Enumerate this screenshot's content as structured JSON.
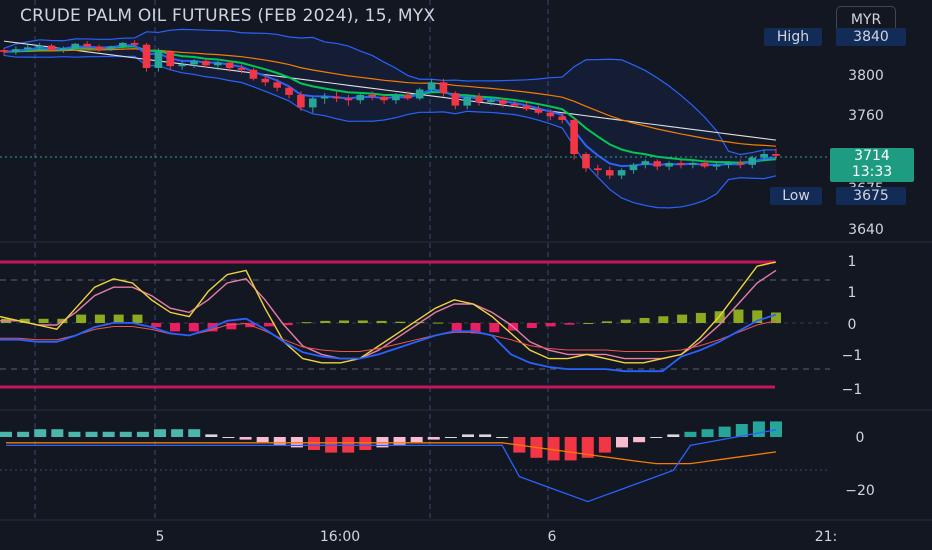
{
  "chart_title": "CRUDE PALM OIL FUTURES (FEB 2024), 15, MYX",
  "currency_button": "MYR",
  "high_label": "High",
  "high_value": "3840",
  "low_label": "Low",
  "low_value": "3675",
  "last_price": "3714",
  "countdown": "13:33",
  "colors": {
    "background": "#131722",
    "up": "#26a69a",
    "down": "#f23645",
    "bollinger": "#2962ff",
    "ema_fast": "#2962ff",
    "ema_mid": "#00c853",
    "ema_slow": "#f57c00",
    "long_ma": "#e0e0e0",
    "stoch_k": "#f0d43a",
    "stoch_d": "#e67ea8",
    "band_lines": "#c2185b"
  },
  "chart_data": [
    {
      "type": "candlestick",
      "pane": "price",
      "ylim": [
        3620,
        3860
      ],
      "y_ticks": [
        "3840",
        "3800",
        "3760",
        "3675",
        "3640"
      ],
      "x_ticks": [
        "5",
        "16:00",
        "6",
        "21:"
      ],
      "bars": [
        [
          3832,
          3834,
          3826,
          3830
        ],
        [
          3830,
          3836,
          3827,
          3833
        ],
        [
          3833,
          3838,
          3830,
          3835
        ],
        [
          3835,
          3840,
          3833,
          3837
        ],
        [
          3837,
          3839,
          3830,
          3832
        ],
        [
          3832,
          3836,
          3829,
          3834
        ],
        [
          3834,
          3840,
          3832,
          3839
        ],
        [
          3839,
          3842,
          3834,
          3836
        ],
        [
          3836,
          3838,
          3830,
          3833
        ],
        [
          3833,
          3837,
          3831,
          3836
        ],
        [
          3836,
          3841,
          3834,
          3840
        ],
        [
          3840,
          3843,
          3836,
          3838
        ],
        [
          3838,
          3840,
          3808,
          3812
        ],
        [
          3812,
          3834,
          3808,
          3830
        ],
        [
          3830,
          3832,
          3810,
          3814
        ],
        [
          3814,
          3820,
          3810,
          3816
        ],
        [
          3816,
          3822,
          3812,
          3820
        ],
        [
          3820,
          3822,
          3812,
          3815
        ],
        [
          3815,
          3820,
          3810,
          3818
        ],
        [
          3818,
          3820,
          3808,
          3812
        ],
        [
          3812,
          3816,
          3806,
          3810
        ],
        [
          3810,
          3812,
          3798,
          3800
        ],
        [
          3800,
          3804,
          3792,
          3796
        ],
        [
          3796,
          3800,
          3786,
          3790
        ],
        [
          3790,
          3792,
          3778,
          3782
        ],
        [
          3782,
          3786,
          3764,
          3768
        ],
        [
          3768,
          3780,
          3762,
          3778
        ],
        [
          3778,
          3784,
          3772,
          3780
        ],
        [
          3780,
          3786,
          3774,
          3778
        ],
        [
          3778,
          3782,
          3770,
          3776
        ],
        [
          3776,
          3784,
          3772,
          3782
        ],
        [
          3782,
          3786,
          3776,
          3780
        ],
        [
          3780,
          3782,
          3772,
          3776
        ],
        [
          3776,
          3784,
          3772,
          3782
        ],
        [
          3782,
          3786,
          3776,
          3778
        ],
        [
          3778,
          3790,
          3776,
          3788
        ],
        [
          3788,
          3800,
          3784,
          3796
        ],
        [
          3796,
          3800,
          3780,
          3784
        ],
        [
          3784,
          3786,
          3766,
          3770
        ],
        [
          3770,
          3782,
          3766,
          3780
        ],
        [
          3780,
          3784,
          3770,
          3774
        ],
        [
          3774,
          3780,
          3770,
          3776
        ],
        [
          3776,
          3778,
          3768,
          3772
        ],
        [
          3772,
          3776,
          3768,
          3770
        ],
        [
          3770,
          3774,
          3764,
          3766
        ],
        [
          3766,
          3770,
          3760,
          3762
        ],
        [
          3762,
          3766,
          3754,
          3758
        ],
        [
          3758,
          3762,
          3750,
          3754
        ],
        [
          3754,
          3756,
          3710,
          3716
        ],
        [
          3716,
          3718,
          3696,
          3700
        ],
        [
          3700,
          3704,
          3692,
          3698
        ],
        [
          3698,
          3702,
          3688,
          3692
        ],
        [
          3692,
          3700,
          3688,
          3698
        ],
        [
          3698,
          3706,
          3694,
          3704
        ],
        [
          3704,
          3710,
          3700,
          3708
        ],
        [
          3708,
          3710,
          3698,
          3702
        ],
        [
          3702,
          3708,
          3698,
          3706
        ],
        [
          3706,
          3710,
          3700,
          3704
        ],
        [
          3704,
          3708,
          3700,
          3706
        ],
        [
          3706,
          3710,
          3700,
          3702
        ],
        [
          3702,
          3706,
          3698,
          3704
        ],
        [
          3704,
          3708,
          3700,
          3706
        ],
        [
          3706,
          3710,
          3700,
          3704
        ],
        [
          3704,
          3714,
          3700,
          3712
        ],
        [
          3712,
          3720,
          3708,
          3716
        ],
        [
          3716,
          3722,
          3710,
          3714
        ]
      ]
    },
    {
      "type": "line",
      "pane": "stochastic",
      "y_ticks": [
        "1",
        "1",
        "0",
        "−1",
        "−1"
      ],
      "series": [
        {
          "name": "",
          "values": [
            0.2,
            0.1,
            0.0,
            -0.1,
            0.4,
            0.9,
            1.1,
            1.0,
            0.6,
            0.3,
            0.2,
            0.8,
            1.2,
            1.3,
            0.4,
            -0.4,
            -0.8,
            -0.9,
            -0.9,
            -0.8,
            -0.5,
            -0.2,
            0.1,
            0.4,
            0.6,
            0.5,
            0.2,
            -0.2,
            -0.6,
            -0.8,
            -0.8,
            -0.7,
            -0.8,
            -0.9,
            -0.9,
            -0.8,
            -0.7,
            -0.3,
            0.2,
            0.8,
            1.4,
            1.5
          ]
        },
        {
          "name": "",
          "values": [
            0.1,
            0.1,
            0.0,
            0.0,
            0.3,
            0.7,
            0.9,
            0.9,
            0.7,
            0.4,
            0.3,
            0.6,
            1.0,
            1.1,
            0.6,
            0.0,
            -0.5,
            -0.7,
            -0.8,
            -0.8,
            -0.6,
            -0.3,
            0.0,
            0.3,
            0.5,
            0.5,
            0.3,
            0.0,
            -0.4,
            -0.6,
            -0.7,
            -0.7,
            -0.7,
            -0.8,
            -0.8,
            -0.8,
            -0.7,
            -0.4,
            0.0,
            0.5,
            1.0,
            1.3
          ]
        }
      ],
      "histogram": [
        0.1,
        0.1,
        0.1,
        0.1,
        0.2,
        0.2,
        0.2,
        0.2,
        -0.1,
        -0.2,
        -0.2,
        -0.2,
        -0.15,
        -0.1,
        -0.08,
        -0.05,
        0.02,
        0.05,
        0.06,
        0.06,
        0.05,
        0.03,
        0.02,
        0.01,
        -0.2,
        -0.25,
        -0.22,
        -0.18,
        -0.12,
        -0.08,
        -0.04,
        0.0,
        0.04,
        0.08,
        0.12,
        0.16,
        0.2,
        0.24,
        0.28,
        0.32,
        0.3,
        0.25
      ]
    },
    {
      "type": "bar",
      "pane": "oscillator",
      "y_ticks": [
        "0",
        "−20"
      ],
      "values": [
        2,
        2,
        3,
        3,
        2,
        2,
        2,
        2,
        2,
        3,
        3,
        3,
        1,
        0,
        -1,
        -2,
        -3,
        -4,
        -5,
        -6,
        -6,
        -5,
        -4,
        -3,
        -2,
        -1,
        0,
        1,
        1,
        0,
        -6,
        -8,
        -9,
        -9,
        -8,
        -6,
        -4,
        -2,
        0,
        1,
        2,
        3,
        4,
        5,
        6,
        6
      ]
    }
  ]
}
